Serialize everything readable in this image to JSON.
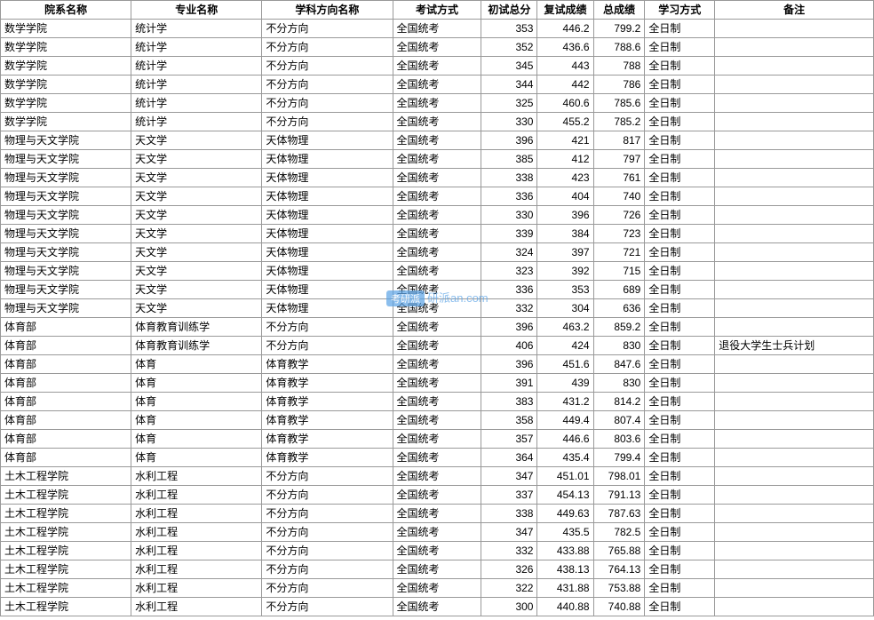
{
  "table": {
    "columns": [
      "院系名称",
      "专业名称",
      "学科方向名称",
      "考试方式",
      "初试总分",
      "复试成绩",
      "总成绩",
      "学习方式",
      "备注"
    ],
    "numeric_cols": [
      4,
      5,
      6
    ],
    "rows": [
      [
        "数学学院",
        "统计学",
        "不分方向",
        "全国统考",
        "353",
        "446.2",
        "799.2",
        "全日制",
        ""
      ],
      [
        "数学学院",
        "统计学",
        "不分方向",
        "全国统考",
        "352",
        "436.6",
        "788.6",
        "全日制",
        ""
      ],
      [
        "数学学院",
        "统计学",
        "不分方向",
        "全国统考",
        "345",
        "443",
        "788",
        "全日制",
        ""
      ],
      [
        "数学学院",
        "统计学",
        "不分方向",
        "全国统考",
        "344",
        "442",
        "786",
        "全日制",
        ""
      ],
      [
        "数学学院",
        "统计学",
        "不分方向",
        "全国统考",
        "325",
        "460.6",
        "785.6",
        "全日制",
        ""
      ],
      [
        "数学学院",
        "统计学",
        "不分方向",
        "全国统考",
        "330",
        "455.2",
        "785.2",
        "全日制",
        ""
      ],
      [
        "物理与天文学院",
        "天文学",
        "天体物理",
        "全国统考",
        "396",
        "421",
        "817",
        "全日制",
        ""
      ],
      [
        "物理与天文学院",
        "天文学",
        "天体物理",
        "全国统考",
        "385",
        "412",
        "797",
        "全日制",
        ""
      ],
      [
        "物理与天文学院",
        "天文学",
        "天体物理",
        "全国统考",
        "338",
        "423",
        "761",
        "全日制",
        ""
      ],
      [
        "物理与天文学院",
        "天文学",
        "天体物理",
        "全国统考",
        "336",
        "404",
        "740",
        "全日制",
        ""
      ],
      [
        "物理与天文学院",
        "天文学",
        "天体物理",
        "全国统考",
        "330",
        "396",
        "726",
        "全日制",
        ""
      ],
      [
        "物理与天文学院",
        "天文学",
        "天体物理",
        "全国统考",
        "339",
        "384",
        "723",
        "全日制",
        ""
      ],
      [
        "物理与天文学院",
        "天文学",
        "天体物理",
        "全国统考",
        "324",
        "397",
        "721",
        "全日制",
        ""
      ],
      [
        "物理与天文学院",
        "天文学",
        "天体物理",
        "全国统考",
        "323",
        "392",
        "715",
        "全日制",
        ""
      ],
      [
        "物理与天文学院",
        "天文学",
        "天体物理",
        "全国统考",
        "336",
        "353",
        "689",
        "全日制",
        ""
      ],
      [
        "物理与天文学院",
        "天文学",
        "天体物理",
        "全国统考",
        "332",
        "304",
        "636",
        "全日制",
        ""
      ],
      [
        "体育部",
        "体育教育训练学",
        "不分方向",
        "全国统考",
        "396",
        "463.2",
        "859.2",
        "全日制",
        ""
      ],
      [
        "体育部",
        "体育教育训练学",
        "不分方向",
        "全国统考",
        "406",
        "424",
        "830",
        "全日制",
        "退役大学生士兵计划"
      ],
      [
        "体育部",
        "体育",
        "体育教学",
        "全国统考",
        "396",
        "451.6",
        "847.6",
        "全日制",
        ""
      ],
      [
        "体育部",
        "体育",
        "体育教学",
        "全国统考",
        "391",
        "439",
        "830",
        "全日制",
        ""
      ],
      [
        "体育部",
        "体育",
        "体育教学",
        "全国统考",
        "383",
        "431.2",
        "814.2",
        "全日制",
        ""
      ],
      [
        "体育部",
        "体育",
        "体育教学",
        "全国统考",
        "358",
        "449.4",
        "807.4",
        "全日制",
        ""
      ],
      [
        "体育部",
        "体育",
        "体育教学",
        "全国统考",
        "357",
        "446.6",
        "803.6",
        "全日制",
        ""
      ],
      [
        "体育部",
        "体育",
        "体育教学",
        "全国统考",
        "364",
        "435.4",
        "799.4",
        "全日制",
        ""
      ],
      [
        "土木工程学院",
        "水利工程",
        "不分方向",
        "全国统考",
        "347",
        "451.01",
        "798.01",
        "全日制",
        ""
      ],
      [
        "土木工程学院",
        "水利工程",
        "不分方向",
        "全国统考",
        "337",
        "454.13",
        "791.13",
        "全日制",
        ""
      ],
      [
        "土木工程学院",
        "水利工程",
        "不分方向",
        "全国统考",
        "338",
        "449.63",
        "787.63",
        "全日制",
        ""
      ],
      [
        "土木工程学院",
        "水利工程",
        "不分方向",
        "全国统考",
        "347",
        "435.5",
        "782.5",
        "全日制",
        ""
      ],
      [
        "土木工程学院",
        "水利工程",
        "不分方向",
        "全国统考",
        "332",
        "433.88",
        "765.88",
        "全日制",
        ""
      ],
      [
        "土木工程学院",
        "水利工程",
        "不分方向",
        "全国统考",
        "326",
        "438.13",
        "764.13",
        "全日制",
        ""
      ],
      [
        "土木工程学院",
        "水利工程",
        "不分方向",
        "全国统考",
        "322",
        "431.88",
        "753.88",
        "全日制",
        ""
      ],
      [
        "土木工程学院",
        "水利工程",
        "不分方向",
        "全国统考",
        "300",
        "440.88",
        "740.88",
        "全日制",
        ""
      ]
    ]
  },
  "watermark": {
    "badge": "考研派",
    "text": "研派an.com"
  }
}
